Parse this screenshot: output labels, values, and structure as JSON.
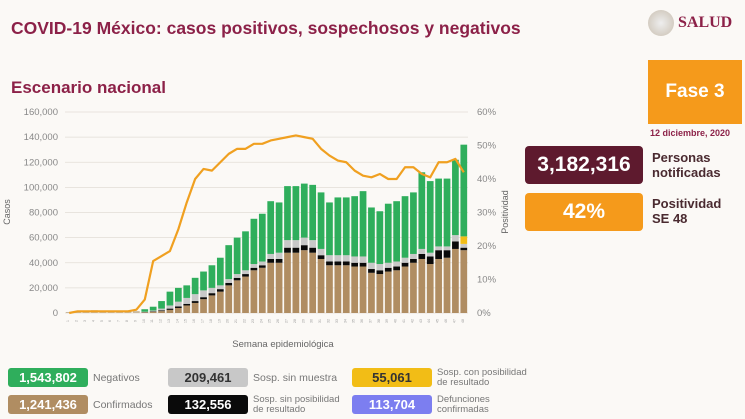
{
  "header": {
    "title": "COVID-19 México: casos positivos, sospechosos y negativos",
    "subtitle": "Escenario nacional",
    "logo_text": "SALUD"
  },
  "side": {
    "fase": "Fase 3",
    "date": "12 diciembre, 2020",
    "personas_value": "3,182,316",
    "personas_label_1": "Personas",
    "personas_label_2": "notificadas",
    "positividad_value": "42%",
    "positividad_label_1": "Positividad",
    "positividad_label_2": "SE 48"
  },
  "colors": {
    "confirmados": "#b08d62",
    "sin_posibilidad": "#0a0a0a",
    "sin_muestra": "#c8c8c8",
    "con_posibilidad": "#f2bd16",
    "negativos": "#2fae5c",
    "positividad": "#f0a020",
    "defunciones": "#7c7ef0",
    "personas": "#5e1a2e",
    "accent": "#f59a1b"
  },
  "legend": [
    {
      "value": "1,543,802",
      "label": "Negativos",
      "key": "negativos"
    },
    {
      "value": "209,461",
      "label": "Sosp. sin muestra",
      "key": "sin_muestra"
    },
    {
      "value": "55,061",
      "label": "Sosp. con posibilidad de resultado",
      "key": "con_posibilidad"
    },
    {
      "value": "1,241,436",
      "label": "Confirmados",
      "key": "confirmados"
    },
    {
      "value": "132,556",
      "label": "Sosp. sin posibilidad de resultado",
      "key": "sin_posibilidad"
    },
    {
      "value": "113,704",
      "label": "Defunciones confirmadas",
      "key": "defunciones"
    }
  ],
  "chart_data": {
    "type": "bar",
    "stacked": true,
    "xlabel": "Semana epidemiológica",
    "ylabel": "Casos",
    "y2label": "Positividad",
    "ylim": [
      0,
      160000
    ],
    "y2lim": [
      0,
      60
    ],
    "yticks": [
      "0",
      "20,000",
      "40,000",
      "60,000",
      "80,000",
      "100,000",
      "120,000",
      "140,000",
      "160,000"
    ],
    "y2ticks": [
      "0%",
      "10%",
      "20%",
      "30%",
      "40%",
      "50%",
      "60%"
    ],
    "grid": true,
    "categories": [
      1,
      2,
      3,
      4,
      5,
      6,
      7,
      8,
      9,
      10,
      11,
      12,
      13,
      14,
      15,
      16,
      17,
      18,
      19,
      20,
      21,
      22,
      23,
      24,
      25,
      26,
      27,
      28,
      29,
      30,
      31,
      32,
      33,
      34,
      35,
      36,
      37,
      38,
      39,
      40,
      41,
      42,
      43,
      44,
      45,
      46,
      47,
      48
    ],
    "totals": [
      800,
      1200,
      1800,
      2200,
      1800,
      1800,
      1600,
      1500,
      1500,
      3000,
      5000,
      9500,
      17000,
      20000,
      22000,
      28000,
      33000,
      38000,
      44000,
      54000,
      60000,
      65000,
      75000,
      79000,
      89000,
      88000,
      101000,
      101000,
      103000,
      102000,
      96000,
      88000,
      92000,
      92000,
      93000,
      97000,
      84000,
      81000,
      87000,
      89000,
      93000,
      96000,
      112000,
      105000,
      107000,
      107000,
      122000,
      134000
    ],
    "confirmados": [
      0,
      0,
      0,
      0,
      0,
      0,
      0,
      0,
      0,
      500,
      1000,
      1500,
      2500,
      4000,
      6000,
      8000,
      11000,
      14000,
      17000,
      22000,
      26000,
      29000,
      34000,
      36000,
      40000,
      40000,
      48000,
      48000,
      50000,
      48000,
      43000,
      38000,
      38000,
      38000,
      37000,
      37000,
      32000,
      31000,
      33000,
      34000,
      37000,
      40000,
      43000,
      39000,
      43000,
      44000,
      51000,
      50000
    ],
    "sin_posibilidad": [
      0,
      0,
      0,
      0,
      0,
      0,
      0,
      0,
      0,
      200,
      400,
      600,
      1000,
      1200,
      1300,
      1500,
      1600,
      1800,
      2000,
      2000,
      2000,
      2000,
      2000,
      2000,
      3000,
      3000,
      4000,
      4000,
      4000,
      4000,
      3000,
      3000,
      3000,
      3000,
      3000,
      3000,
      3000,
      3000,
      3000,
      3000,
      3000,
      3000,
      4000,
      6000,
      7000,
      6000,
      6000,
      2000
    ],
    "sin_muestra": [
      0,
      0,
      0,
      0,
      0,
      0,
      0,
      0,
      0,
      300,
      600,
      1400,
      2500,
      3800,
      4700,
      5500,
      5400,
      4200,
      3000,
      3000,
      3000,
      3000,
      3000,
      3000,
      4000,
      5000,
      6000,
      6000,
      6000,
      6000,
      5000,
      5000,
      5000,
      5000,
      5000,
      5000,
      5000,
      5000,
      4000,
      4000,
      4000,
      4000,
      4000,
      3000,
      3000,
      3000,
      5000,
      3000
    ],
    "con_posibilidad": [
      0,
      0,
      0,
      0,
      0,
      0,
      0,
      0,
      0,
      0,
      0,
      0,
      0,
      0,
      0,
      0,
      0,
      0,
      0,
      0,
      0,
      0,
      0,
      0,
      0,
      0,
      0,
      0,
      0,
      0,
      0,
      0,
      0,
      0,
      0,
      0,
      0,
      0,
      0,
      0,
      0,
      0,
      0,
      0,
      0,
      0,
      0,
      6000
    ],
    "positividad": [
      0,
      0.5,
      0.5,
      0.5,
      0.5,
      0.5,
      0.5,
      0.5,
      1,
      4,
      15.5,
      17,
      18.5,
      25,
      33,
      40,
      43,
      42.5,
      45,
      47.5,
      49,
      49,
      50.5,
      50.5,
      51.5,
      52,
      52.5,
      53,
      52.5,
      52,
      49,
      47,
      45.5,
      45,
      42.5,
      41,
      40.5,
      41.5,
      40,
      40,
      43.5,
      43.5,
      41.5,
      40.5,
      45,
      45,
      46,
      42
    ]
  }
}
